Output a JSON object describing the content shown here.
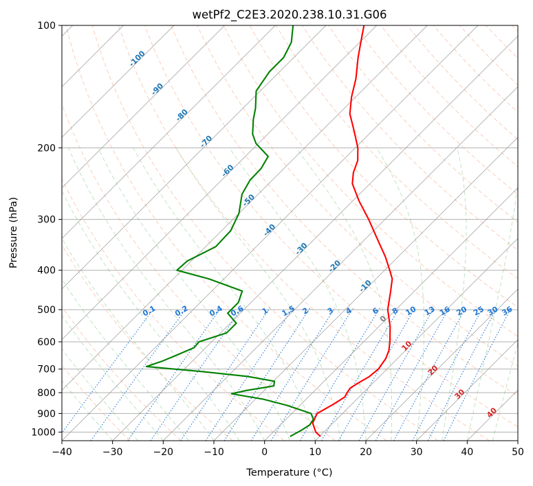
{
  "chart_data": {
    "type": "line",
    "subtype": "skew-t log-p",
    "title": "wetPf2_C2E3.2020.238.10.31.G06",
    "xlabel": "Temperature (°C)",
    "ylabel": "Pressure (hPa)",
    "xlim": [
      -40,
      50
    ],
    "ylim": [
      1050,
      100
    ],
    "y_scale": "log",
    "x_ticks": [
      "−40",
      "−30",
      "−20",
      "−10",
      "0",
      "10",
      "20",
      "30",
      "40",
      "50"
    ],
    "y_ticks": [
      "100",
      "200",
      "300",
      "400",
      "500",
      "600",
      "700",
      "800",
      "900",
      "1000"
    ],
    "grid": true,
    "series": [
      {
        "role": "temperature",
        "color": "#ff0000",
        "points": [
          [
            1025,
            10.2
          ],
          [
            1000,
            8.4
          ],
          [
            950,
            6.0
          ],
          [
            900,
            5.0
          ],
          [
            880,
            5.6
          ],
          [
            850,
            6.5
          ],
          [
            820,
            7.2
          ],
          [
            800,
            6.8
          ],
          [
            780,
            6.5
          ],
          [
            760,
            7.0
          ],
          [
            730,
            8.0
          ],
          [
            700,
            8.3
          ],
          [
            660,
            7.7
          ],
          [
            630,
            6.7
          ],
          [
            600,
            5.2
          ],
          [
            550,
            2.2
          ],
          [
            500,
            -1.6
          ],
          [
            450,
            -4.7
          ],
          [
            420,
            -6.8
          ],
          [
            400,
            -9.0
          ],
          [
            370,
            -12.6
          ],
          [
            340,
            -16.9
          ],
          [
            300,
            -23.2
          ],
          [
            270,
            -28.8
          ],
          [
            245,
            -33.5
          ],
          [
            230,
            -35.5
          ],
          [
            215,
            -37.0
          ],
          [
            200,
            -39.5
          ],
          [
            180,
            -44.0
          ],
          [
            165,
            -47.8
          ],
          [
            150,
            -50.8
          ],
          [
            135,
            -53.6
          ],
          [
            120,
            -57.3
          ],
          [
            110,
            -59.8
          ],
          [
            100,
            -62.5
          ]
        ]
      },
      {
        "role": "dewpoint",
        "color": "#008000",
        "points": [
          [
            1025,
            4.2
          ],
          [
            990,
            5.2
          ],
          [
            960,
            5.8
          ],
          [
            930,
            5.4
          ],
          [
            900,
            3.8
          ],
          [
            860,
            -2.5
          ],
          [
            830,
            -8.5
          ],
          [
            805,
            -15.8
          ],
          [
            790,
            -13.5
          ],
          [
            770,
            -9.0
          ],
          [
            750,
            -9.8
          ],
          [
            730,
            -16.0
          ],
          [
            710,
            -26.0
          ],
          [
            690,
            -38.0
          ],
          [
            670,
            -36.0
          ],
          [
            650,
            -34.5
          ],
          [
            620,
            -32.3
          ],
          [
            600,
            -32.5
          ],
          [
            570,
            -28.8
          ],
          [
            540,
            -28.8
          ],
          [
            510,
            -32.5
          ],
          [
            480,
            -32.5
          ],
          [
            450,
            -34.0
          ],
          [
            420,
            -43.0
          ],
          [
            400,
            -51.0
          ],
          [
            380,
            -50.8
          ],
          [
            350,
            -48.0
          ],
          [
            320,
            -48.2
          ],
          [
            290,
            -50.0
          ],
          [
            260,
            -53.2
          ],
          [
            240,
            -54.4
          ],
          [
            225,
            -54.5
          ],
          [
            210,
            -55.5
          ],
          [
            195,
            -60.5
          ],
          [
            185,
            -63.0
          ],
          [
            170,
            -65.8
          ],
          [
            160,
            -67.5
          ],
          [
            145,
            -70.8
          ],
          [
            130,
            -72.0
          ],
          [
            120,
            -72.0
          ],
          [
            110,
            -73.5
          ],
          [
            100,
            -76.5
          ]
        ]
      }
    ],
    "reference_lines": {
      "dry_adiabats_color": "#f4a582",
      "moist_adiabats_color": "#4daf4a",
      "mixing_ratio_color": "#1f77d4",
      "isotherm_color": "#999999",
      "highlight_color": "#d2b48c"
    },
    "annotations": {
      "mixing_ratio": [
        "0.1",
        "0.2",
        "0.4",
        "0.6",
        "1",
        "1.5",
        "2",
        "3",
        "4",
        "6",
        "8",
        "10",
        "13",
        "16",
        "20",
        "25",
        "30",
        "36"
      ],
      "isotherm_labels": [
        "-100",
        "-90",
        "-80",
        "-70",
        "-60",
        "-50",
        "-40",
        "-30",
        "-20",
        "-10",
        "0",
        "10",
        "20",
        "30",
        "40"
      ]
    }
  }
}
